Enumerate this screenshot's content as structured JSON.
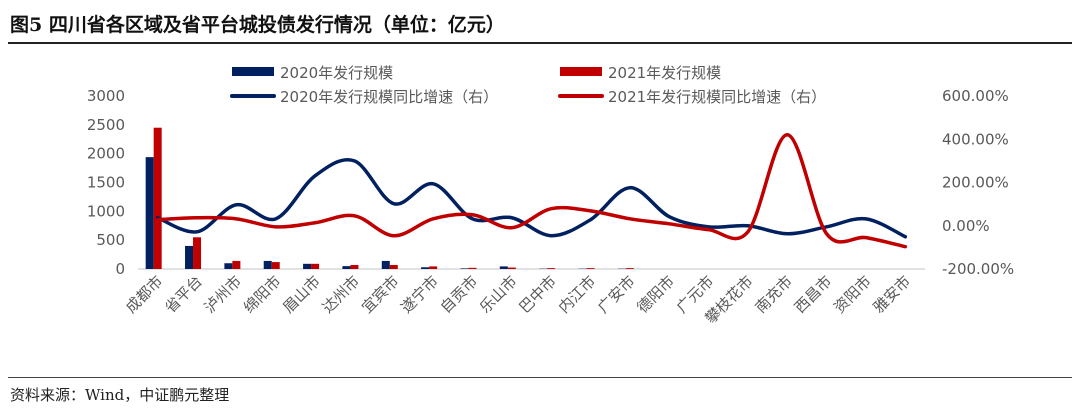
{
  "title": "图5  四川省各区域及省平台城投债发行情况（单位：亿元）",
  "source": "资料来源：Wind，中证鹏元整理",
  "colors": {
    "s2020": "#002060",
    "s2021": "#C00000"
  },
  "chart_data": {
    "type": "bar+line",
    "categories": [
      "成都市",
      "省平台",
      "泸州市",
      "绵阳市",
      "眉山市",
      "达州市",
      "宜宾市",
      "遂宁市",
      "自贡市",
      "乐山市",
      "巴中市",
      "内江市",
      "广安市",
      "德阳市",
      "广元市",
      "攀枝花市",
      "南充市",
      "西昌市",
      "资阳市",
      "雅安市"
    ],
    "series": [
      {
        "name": "2020年发行规模",
        "type": "bar",
        "axis": "left",
        "values": [
          1940,
          400,
          100,
          140,
          90,
          50,
          140,
          30,
          10,
          45,
          5,
          5,
          5,
          0,
          0,
          0,
          0,
          0,
          0,
          0
        ]
      },
      {
        "name": "2021年发行规模",
        "type": "bar",
        "axis": "left",
        "values": [
          2450,
          550,
          140,
          120,
          90,
          70,
          70,
          45,
          20,
          25,
          15,
          15,
          15,
          0,
          0,
          0,
          0,
          0,
          0,
          0
        ]
      },
      {
        "name": "2020年发行规模同比增速（右）",
        "type": "line",
        "axis": "right",
        "values": [
          37,
          -28,
          97,
          32,
          231,
          300,
          102,
          194,
          32,
          37,
          -46,
          28,
          176,
          42,
          -5,
          0,
          -37,
          -5,
          32,
          -51
        ]
      },
      {
        "name": "2021年发行规模同比增速（右）",
        "type": "line",
        "axis": "right",
        "values": [
          28,
          37,
          32,
          -5,
          14,
          46,
          -46,
          32,
          51,
          -9,
          79,
          69,
          32,
          9,
          -18,
          -28,
          421,
          -37,
          -55,
          -97
        ]
      }
    ],
    "ylim": [
      0,
      3000
    ],
    "yticks": [
      "0",
      "500",
      "1000",
      "1500",
      "2000",
      "2500",
      "3000"
    ],
    "y2lim": [
      -200,
      600
    ],
    "y2ticks": [
      "-200.00%",
      "0.00%",
      "200.00%",
      "400.00%",
      "600.00%"
    ],
    "legend": "top"
  }
}
